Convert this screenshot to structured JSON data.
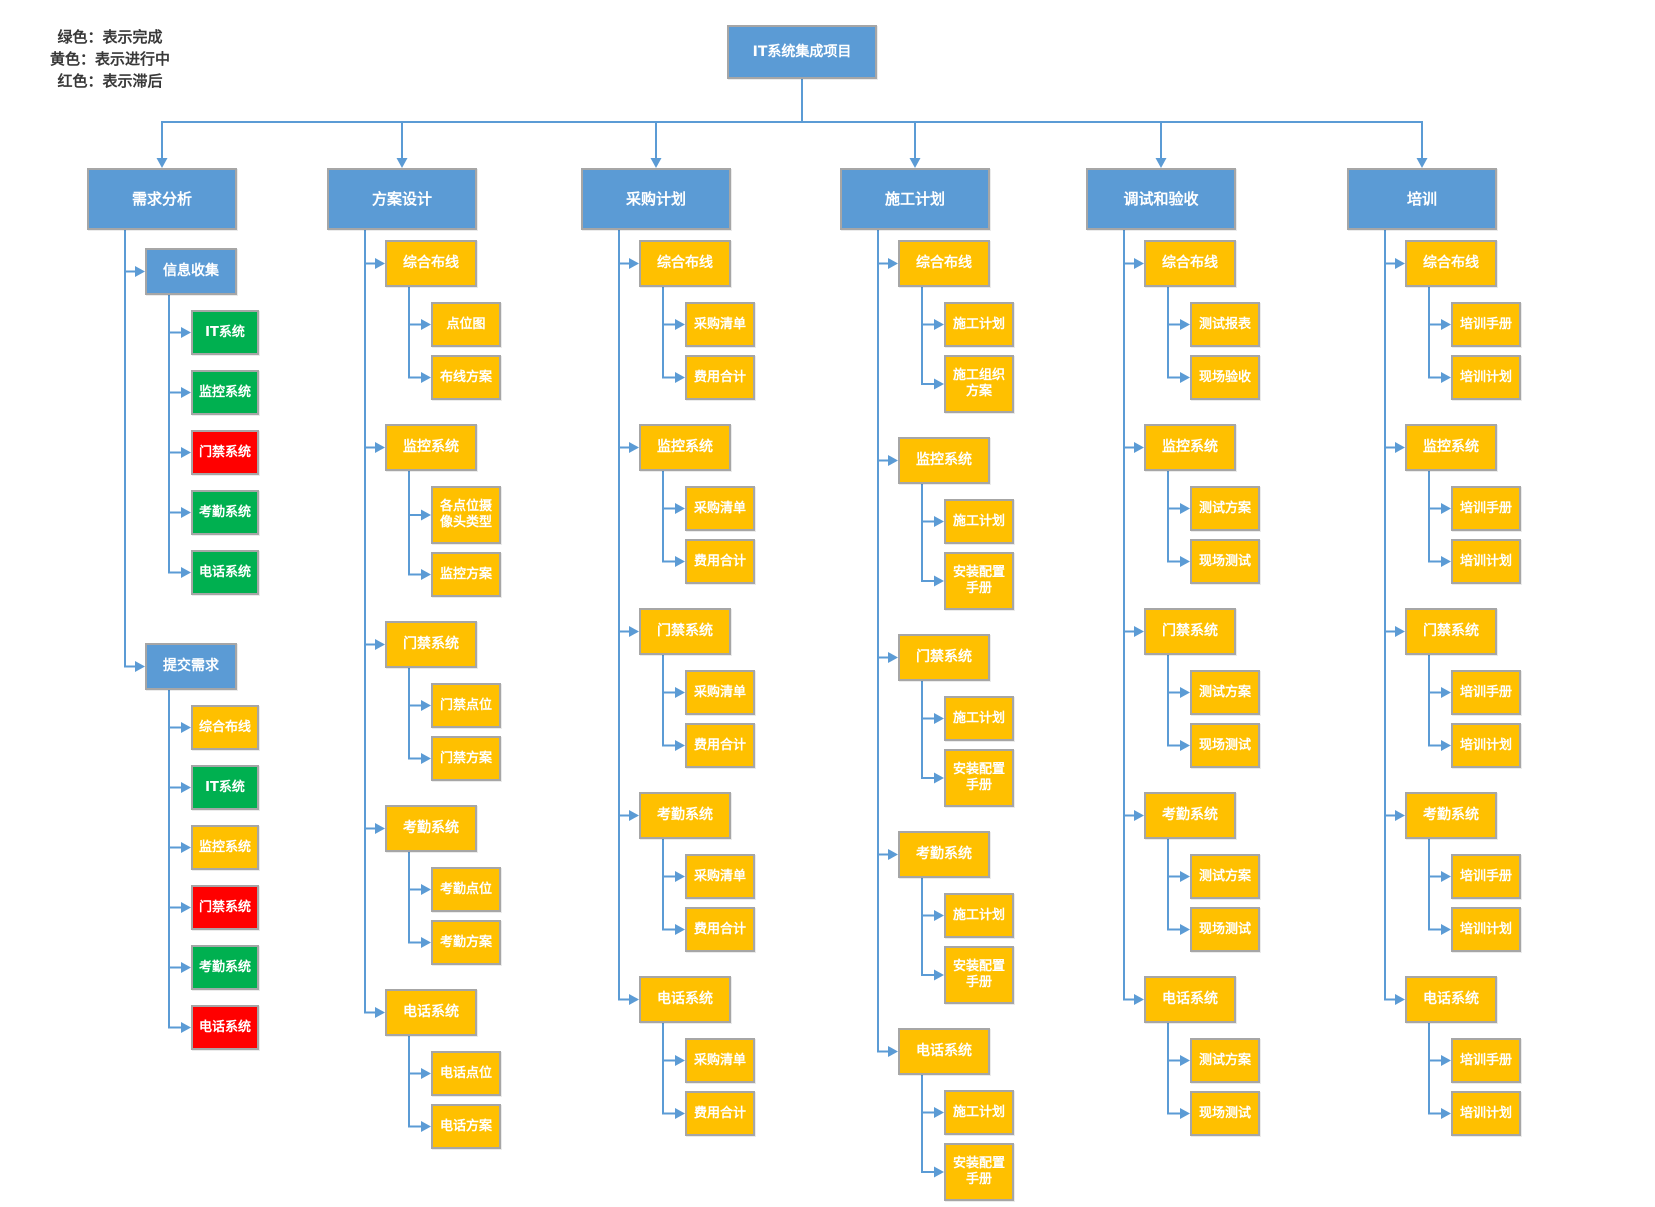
{
  "legend": {
    "lines": [
      "绿色：表示完成",
      "黄色：表示进行中",
      "红色：表示滞后"
    ]
  },
  "colors": {
    "blue": "#5B9BD5",
    "yellow": "#FFC000",
    "green": "#00B050",
    "red": "#FF0000",
    "connector": "#5B9BD5",
    "border": "#A6A6A6"
  },
  "root": {
    "label": "IT系统集成项目",
    "color": "blue"
  },
  "columns": [
    {
      "label": "需求分析",
      "color": "blue",
      "groups": [
        {
          "label": "信息收集",
          "color": "blue",
          "children": [
            {
              "label": "IT系统",
              "color": "green"
            },
            {
              "label": "监控系统",
              "color": "green"
            },
            {
              "label": "门禁系统",
              "color": "red"
            },
            {
              "label": "考勤系统",
              "color": "green"
            },
            {
              "label": "电话系统",
              "color": "green"
            }
          ]
        },
        {
          "label": "提交需求",
          "color": "blue",
          "children": [
            {
              "label": "综合布线",
              "color": "yellow"
            },
            {
              "label": "IT系统",
              "color": "green"
            },
            {
              "label": "监控系统",
              "color": "yellow"
            },
            {
              "label": "门禁系统",
              "color": "red"
            },
            {
              "label": "考勤系统",
              "color": "green"
            },
            {
              "label": "电话系统",
              "color": "red"
            }
          ]
        }
      ]
    },
    {
      "label": "方案设计",
      "color": "blue",
      "groups": [
        {
          "label": "综合布线",
          "color": "yellow",
          "children": [
            {
              "label": "点位图",
              "color": "yellow"
            },
            {
              "label": "布线方案",
              "color": "yellow"
            }
          ]
        },
        {
          "label": "监控系统",
          "color": "yellow",
          "children": [
            {
              "label": "各点位摄像头类型",
              "color": "yellow"
            },
            {
              "label": "监控方案",
              "color": "yellow"
            }
          ]
        },
        {
          "label": "门禁系统",
          "color": "yellow",
          "children": [
            {
              "label": "门禁点位",
              "color": "yellow"
            },
            {
              "label": "门禁方案",
              "color": "yellow"
            }
          ]
        },
        {
          "label": "考勤系统",
          "color": "yellow",
          "children": [
            {
              "label": "考勤点位",
              "color": "yellow"
            },
            {
              "label": "考勤方案",
              "color": "yellow"
            }
          ]
        },
        {
          "label": "电话系统",
          "color": "yellow",
          "children": [
            {
              "label": "电话点位",
              "color": "yellow"
            },
            {
              "label": "电话方案",
              "color": "yellow"
            }
          ]
        }
      ]
    },
    {
      "label": "采购计划",
      "color": "blue",
      "groups": [
        {
          "label": "综合布线",
          "color": "yellow",
          "children": [
            {
              "label": "采购清单",
              "color": "yellow"
            },
            {
              "label": "费用合计",
              "color": "yellow"
            }
          ]
        },
        {
          "label": "监控系统",
          "color": "yellow",
          "children": [
            {
              "label": "采购清单",
              "color": "yellow"
            },
            {
              "label": "费用合计",
              "color": "yellow"
            }
          ]
        },
        {
          "label": "门禁系统",
          "color": "yellow",
          "children": [
            {
              "label": "采购清单",
              "color": "yellow"
            },
            {
              "label": "费用合计",
              "color": "yellow"
            }
          ]
        },
        {
          "label": "考勤系统",
          "color": "yellow",
          "children": [
            {
              "label": "采购清单",
              "color": "yellow"
            },
            {
              "label": "费用合计",
              "color": "yellow"
            }
          ]
        },
        {
          "label": "电话系统",
          "color": "yellow",
          "children": [
            {
              "label": "采购清单",
              "color": "yellow"
            },
            {
              "label": "费用合计",
              "color": "yellow"
            }
          ]
        }
      ]
    },
    {
      "label": "施工计划",
      "color": "blue",
      "groups": [
        {
          "label": "综合布线",
          "color": "yellow",
          "children": [
            {
              "label": "施工计划",
              "color": "yellow"
            },
            {
              "label": "施工组织方案",
              "color": "yellow"
            }
          ]
        },
        {
          "label": "监控系统",
          "color": "yellow",
          "children": [
            {
              "label": "施工计划",
              "color": "yellow"
            },
            {
              "label": "安装配置手册",
              "color": "yellow"
            }
          ]
        },
        {
          "label": "门禁系统",
          "color": "yellow",
          "children": [
            {
              "label": "施工计划",
              "color": "yellow"
            },
            {
              "label": "安装配置手册",
              "color": "yellow"
            }
          ]
        },
        {
          "label": "考勤系统",
          "color": "yellow",
          "children": [
            {
              "label": "施工计划",
              "color": "yellow"
            },
            {
              "label": "安装配置手册",
              "color": "yellow"
            }
          ]
        },
        {
          "label": "电话系统",
          "color": "yellow",
          "children": [
            {
              "label": "施工计划",
              "color": "yellow"
            },
            {
              "label": "安装配置手册",
              "color": "yellow"
            }
          ]
        }
      ]
    },
    {
      "label": "调试和验收",
      "color": "blue",
      "groups": [
        {
          "label": "综合布线",
          "color": "yellow",
          "children": [
            {
              "label": "测试报表",
              "color": "yellow"
            },
            {
              "label": "现场验收",
              "color": "yellow"
            }
          ]
        },
        {
          "label": "监控系统",
          "color": "yellow",
          "children": [
            {
              "label": "测试方案",
              "color": "yellow"
            },
            {
              "label": "现场测试",
              "color": "yellow"
            }
          ]
        },
        {
          "label": "门禁系统",
          "color": "yellow",
          "children": [
            {
              "label": "测试方案",
              "color": "yellow"
            },
            {
              "label": "现场测试",
              "color": "yellow"
            }
          ]
        },
        {
          "label": "考勤系统",
          "color": "yellow",
          "children": [
            {
              "label": "测试方案",
              "color": "yellow"
            },
            {
              "label": "现场测试",
              "color": "yellow"
            }
          ]
        },
        {
          "label": "电话系统",
          "color": "yellow",
          "children": [
            {
              "label": "测试方案",
              "color": "yellow"
            },
            {
              "label": "现场测试",
              "color": "yellow"
            }
          ]
        }
      ]
    },
    {
      "label": "培训",
      "color": "blue",
      "groups": [
        {
          "label": "综合布线",
          "color": "yellow",
          "children": [
            {
              "label": "培训手册",
              "color": "yellow"
            },
            {
              "label": "培训计划",
              "color": "yellow"
            }
          ]
        },
        {
          "label": "监控系统",
          "color": "yellow",
          "children": [
            {
              "label": "培训手册",
              "color": "yellow"
            },
            {
              "label": "培训计划",
              "color": "yellow"
            }
          ]
        },
        {
          "label": "门禁系统",
          "color": "yellow",
          "children": [
            {
              "label": "培训手册",
              "color": "yellow"
            },
            {
              "label": "培训计划",
              "color": "yellow"
            }
          ]
        },
        {
          "label": "考勤系统",
          "color": "yellow",
          "children": [
            {
              "label": "培训手册",
              "color": "yellow"
            },
            {
              "label": "培训计划",
              "color": "yellow"
            }
          ]
        },
        {
          "label": "电话系统",
          "color": "yellow",
          "children": [
            {
              "label": "培训手册",
              "color": "yellow"
            },
            {
              "label": "培训计划",
              "color": "yellow"
            }
          ]
        }
      ]
    }
  ]
}
